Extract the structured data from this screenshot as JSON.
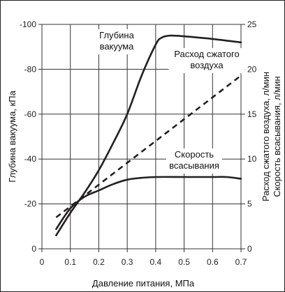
{
  "chart_data": {
    "type": "line",
    "xlabel": "Давление питания, МПа",
    "ylabel_left": "Глубина вакуума, кПа",
    "ylabel_right_1": "Расход сжатого воздуха, л/мин",
    "ylabel_right_2": "Скорость всасывания, л/мин",
    "xlim": [
      0,
      0.7
    ],
    "ylim_left": [
      0,
      -100
    ],
    "ylim_right": [
      0,
      25
    ],
    "xticks": [
      "0",
      "0.1",
      "0.2",
      "0.3",
      "0.4",
      "0.5",
      "0.6",
      "0.7"
    ],
    "yticks_left": [
      "0",
      "-20",
      "-40",
      "-60",
      "-80",
      "-100"
    ],
    "yticks_right": [
      "0",
      "5",
      "10",
      "15",
      "20",
      "25"
    ],
    "grid": true,
    "annotations": [
      {
        "lines": [
          "Глубина",
          "вакуума"
        ],
        "series": "vacuum"
      },
      {
        "lines": [
          "Расход сжатого",
          "воздуха"
        ],
        "series": "air"
      },
      {
        "lines": [
          "Скорость",
          "всасывания"
        ],
        "series": "suction"
      }
    ],
    "series": [
      {
        "name": "Глубина вакуума",
        "axis": "left",
        "style": "solid",
        "x": [
          0.05,
          0.1,
          0.15,
          0.2,
          0.25,
          0.3,
          0.35,
          0.4,
          0.42,
          0.45,
          0.5,
          0.6,
          0.7
        ],
        "y": [
          -6,
          -16,
          -25,
          -35,
          -47,
          -60,
          -77,
          -91,
          -94,
          -95,
          -94.7,
          -93.5,
          -92
        ]
      },
      {
        "name": "Расход сжатого воздуха",
        "axis": "right",
        "style": "dashed",
        "x": [
          0.05,
          0.7
        ],
        "y": [
          3.5,
          19.3
        ]
      },
      {
        "name": "Скорость всасывания",
        "axis": "right",
        "style": "solid",
        "x": [
          0.05,
          0.1,
          0.15,
          0.2,
          0.25,
          0.3,
          0.35,
          0.4,
          0.5,
          0.6,
          0.65,
          0.7
        ],
        "y": [
          2.2,
          4.5,
          5.8,
          6.5,
          7.2,
          7.7,
          7.9,
          8.0,
          8.0,
          8.0,
          8.0,
          7.8
        ]
      }
    ]
  }
}
